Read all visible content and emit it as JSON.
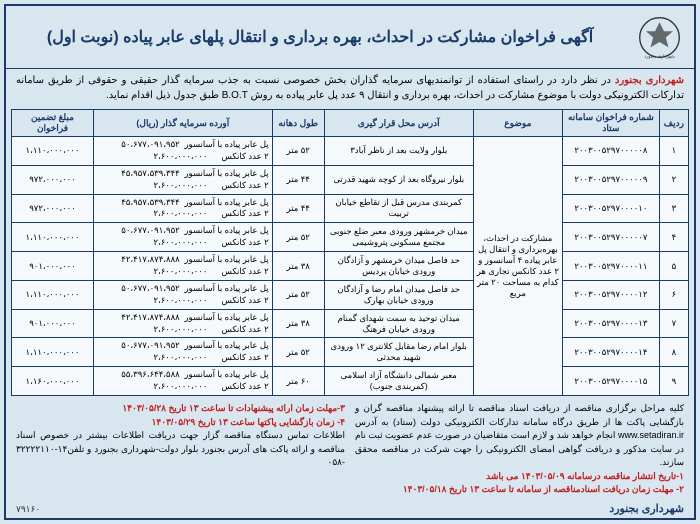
{
  "title": "آگهی فراخوان مشارکت در احداث، بهره برداری و انتقال پلهای عابر پیاده (نوبت اول)",
  "intro_org": "شهرداری بجنورد",
  "intro_text": " در نظر دارد در راستای استفاده از توانمندیهای سرمایه گذاران بخش خصوصی نسبت به جذب سرمایه گذار حقیقی و حقوقی از طریق سامانه تدارکات الکترونیکی دولت با موضوع مشارکت در احداث، بهره برداری و انتقال ۹ عدد پل عابر پیاده به روش B.O.T طبق جدول ذیل اقدام نماید.",
  "headers": {
    "row": "ردیف",
    "setad": "شماره فراخوان سامانه ستاد",
    "subject": "موضوع",
    "address": "آدرس محل قرار گیری",
    "length": "طول دهانه",
    "investor": "آورده سرمایه گذار (ریال)",
    "guarantee": "مبلغ تضمین فراخوان"
  },
  "subject_text": "مشارکت در احداث، بهره‌برداری و انتقال پل عابر پیاده ۴ آسانسور و ۲ عدد کانکس تجاری هر کدام به مساحت ۲۰ متر مربع",
  "invest_line1": "پل عابر پیاده با آسانسور",
  "invest_line2": "۲ عدد کانکس",
  "rows": [
    {
      "n": "۱",
      "setad": "۲۰۰۳۰۰۵۲۹۷۰۰۰۰۰۸",
      "addr": "بلوار ولایت بعد از ناظر آباد۳",
      "len": "۵۲ متر",
      "inv1": "۵۰،۶۷۷،۰۹۱،۹۵۲",
      "inv2": "۲،۶۰۰،۰۰۰،۰۰۰",
      "gar": "۱،۱۱۰،۰۰۰،۰۰۰"
    },
    {
      "n": "۲",
      "setad": "۲۰۰۳۰۰۵۲۹۷۰۰۰۰۰۹",
      "addr": "بلوار نیروگاه بعد از کوچه شهید قدرتی",
      "len": "۴۴ متر",
      "inv1": "۴۵،۹۵۷،۵۳۹،۳۴۴",
      "inv2": "۲،۶۰۰،۰۰۰،۰۰۰",
      "gar": "۹۷۲،۰۰۰،۰۰۰"
    },
    {
      "n": "۳",
      "setad": "۲۰۰۳۰۰۵۲۹۷۰۰۰۰۱۰",
      "addr": "کمربندی مدرس قبل از تقاطع خیابان تربیت",
      "len": "۴۴ متر",
      "inv1": "۴۵،۹۵۷،۵۳۹،۳۴۴",
      "inv2": "۲،۶۰۰،۰۰۰،۰۰۰",
      "gar": "۹۷۲،۰۰۰،۰۰۰"
    },
    {
      "n": "۴",
      "setad": "۲۰۰۳۰۰۵۲۹۷۰۰۰۰۰۷",
      "addr": "میدان خرمشهر ورودی معبر ضلع جنوبی مجتمع مسکونی پتروشیمی",
      "len": "۵۲ متر",
      "inv1": "۵۰،۶۷۷،۰۹۱،۹۵۲",
      "inv2": "۲،۶۰۰،۰۰۰،۰۰۰",
      "gar": "۱،۱۱۰،۰۰۰،۰۰۰"
    },
    {
      "n": "۵",
      "setad": "۲۰۰۳۰۰۵۲۹۷۰۰۰۰۱۱",
      "addr": "حد فاصل میدان خرمشهر و آزادگان ورودی خیابان پردیس",
      "len": "۳۸ متر",
      "inv1": "۴۲،۴۱۷،۸۷۴،۸۸۸",
      "inv2": "۲،۶۰۰،۰۰۰،۰۰۰",
      "gar": "۹۰۱،۰۰۰،۰۰۰"
    },
    {
      "n": "۶",
      "setad": "۲۰۰۳۰۰۵۲۹۷۰۰۰۰۱۲",
      "addr": "حد فاصل میدان امام رضا و آزادگان ورودی خیابان بهارک",
      "len": "۵۲ متر",
      "inv1": "۵۰،۶۷۷،۰۹۱،۹۵۲",
      "inv2": "۲،۶۰۰،۰۰۰،۰۰۰",
      "gar": "۱،۱۱۰،۰۰۰،۰۰۰"
    },
    {
      "n": "۷",
      "setad": "۲۰۰۳۰۰۵۲۹۷۰۰۰۰۱۳",
      "addr": "میدان توحید به سمت شهدای گمنام ورودی خیابان فرهنگ",
      "len": "۳۸ متر",
      "inv1": "۴۲،۴۱۷،۸۷۴،۸۸۸",
      "inv2": "۲،۶۰۰،۰۰۰،۰۰۰",
      "gar": "۹۰۱،۰۰۰،۰۰۰"
    },
    {
      "n": "۸",
      "setad": "۲۰۰۳۰۰۵۲۹۷۰۰۰۰۱۴",
      "addr": "بلوار امام رضا مقابل کلانتری ۱۲ ورودی شهید محدثی",
      "len": "۵۲ متر",
      "inv1": "۵۰،۶۷۷،۰۹۱،۹۵۲",
      "inv2": "۲،۶۰۰،۰۰۰،۰۰۰",
      "gar": "۱،۱۱۰،۰۰۰،۰۰۰"
    },
    {
      "n": "۹",
      "setad": "۲۰۰۳۰۰۵۲۹۷۰۰۰۰۱۵",
      "addr": "معبر شمالی دانشگاه آزاد اسلامی (کمربندی جنوب)",
      "len": "۶۰ متر",
      "inv1": "۵۵،۳۹۶،۶۴۴،۵۸۸",
      "inv2": "۲،۶۰۰،۰۰۰،۰۰۰",
      "gar": "۱،۱۶۰،۰۰۰،۰۰۰"
    }
  ],
  "notes_right": "کلیه مراحل برگزاری مناقصه از دریافت اسناد مناقصه تا ارائه پیشنهاد مناقصه گران و بازگشایی پاکت ها از طریق درگاه سامانه تدارکات الکترونیکی دولت (ستاد) به آدرس www.setadiran.ir انجام خواهد شد و لازم است متقاضیان در صورت عدم عضویت ثبت نام در سایت مذکور و دریافت گواهی امضای الکترونیکی را جهت شرکت در مناقصه محقق سازند.",
  "note_date1": "۱-تاریخ انتشار مناقصه درسامانه ۱۴۰۳/۰۵/۰۹ می باشد",
  "note_date2": "۲- مهلت زمان دریافت اسنادمناقصه از سامانه تا ساعت ۱۳ تاریخ ۱۴۰۳/۰۵/۱۸",
  "note_date3": "۳-مهلت زمان ارائه پیشنهادات تا ساعت ۱۳ تاریخ ۱۴۰۳/۰۵/۲۸",
  "note_date4": "۴- زمان بازگشایی پاکتها ساعت ۱۳ تاریخ ۱۴۰۳/۰۵/۲۹",
  "notes_left_extra": "اطلاعات تماس دستگاه مناقصه گزار جهت دریافت اطلاعات بیشتر در خصوص اسناد مناقصه و ارائه پاکت های آدرس بجنورد بلوار دولت-شهرداری بجنورد و تلفن۱۴-۳۲۲۲۲۱۱۰ -۰۵۸",
  "footer": "شهرداری بجنورد",
  "ref": "۷۹۱۶۰"
}
